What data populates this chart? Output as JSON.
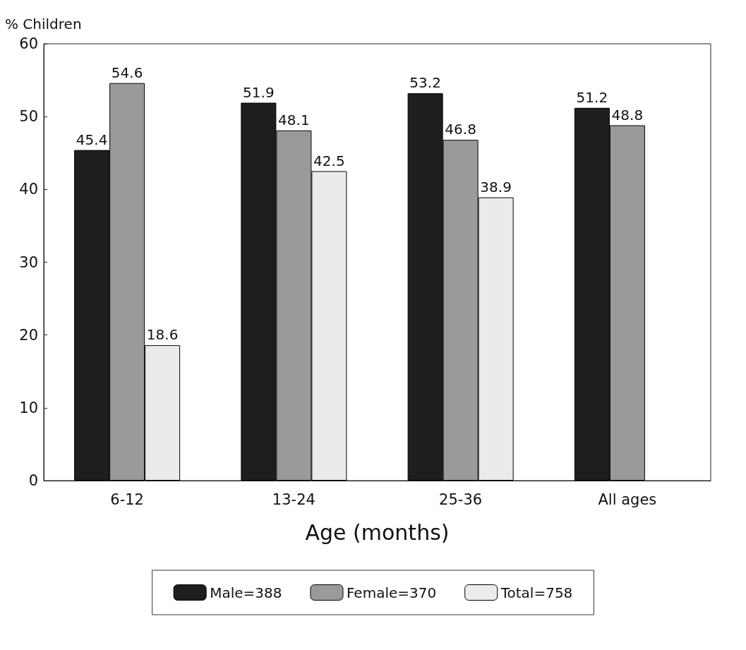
{
  "chart_data": {
    "type": "bar",
    "ylabel": "% Children",
    "xlabel": "Age (months)",
    "categories": [
      "6-12",
      "13-24",
      "25-36",
      "All ages"
    ],
    "series": [
      {
        "name": "Male=388",
        "color": "#1e1e1e",
        "values": [
          45.4,
          51.9,
          53.2,
          51.2
        ]
      },
      {
        "name": "Female=370",
        "color": "#9a9a9a",
        "values": [
          54.6,
          48.1,
          46.8,
          48.8
        ]
      },
      {
        "name": "Total=758",
        "color": "#ebebeb",
        "values": [
          18.6,
          42.5,
          38.9,
          null
        ]
      }
    ],
    "ylim": [
      0,
      60
    ],
    "yticks": [
      0,
      10,
      20,
      30,
      40,
      50,
      60
    ],
    "grid": false,
    "legend": "bottom",
    "data_labels": true
  }
}
